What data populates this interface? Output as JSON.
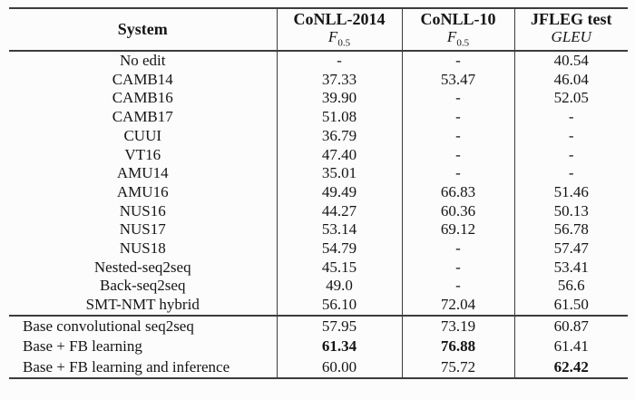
{
  "table": {
    "header": {
      "system": "System",
      "cols": [
        {
          "title": "CoNLL-2014",
          "metric": "F",
          "metric_sub": "0.5"
        },
        {
          "title": "CoNLL-10",
          "metric": "F",
          "metric_sub": "0.5"
        },
        {
          "title": "JFLEG test",
          "metric": "GLEU",
          "metric_sub": ""
        }
      ]
    },
    "rows": [
      {
        "system": "No edit",
        "values": [
          "-",
          "-",
          "40.54"
        ],
        "bold": [
          false,
          false,
          false
        ],
        "group": "published"
      },
      {
        "system": "CAMB14",
        "values": [
          "37.33",
          "53.47",
          "46.04"
        ],
        "bold": [
          false,
          false,
          false
        ],
        "group": "published"
      },
      {
        "system": "CAMB16",
        "values": [
          "39.90",
          "-",
          "52.05"
        ],
        "bold": [
          false,
          false,
          false
        ],
        "group": "published"
      },
      {
        "system": "CAMB17",
        "values": [
          "51.08",
          "-",
          "-"
        ],
        "bold": [
          false,
          false,
          false
        ],
        "group": "published"
      },
      {
        "system": "CUUI",
        "values": [
          "36.79",
          "-",
          "-"
        ],
        "bold": [
          false,
          false,
          false
        ],
        "group": "published"
      },
      {
        "system": "VT16",
        "values": [
          "47.40",
          "-",
          "-"
        ],
        "bold": [
          false,
          false,
          false
        ],
        "group": "published"
      },
      {
        "system": "AMU14",
        "values": [
          "35.01",
          "-",
          "-"
        ],
        "bold": [
          false,
          false,
          false
        ],
        "group": "published"
      },
      {
        "system": "AMU16",
        "values": [
          "49.49",
          "66.83",
          "51.46"
        ],
        "bold": [
          false,
          false,
          false
        ],
        "group": "published"
      },
      {
        "system": "NUS16",
        "values": [
          "44.27",
          "60.36",
          "50.13"
        ],
        "bold": [
          false,
          false,
          false
        ],
        "group": "published"
      },
      {
        "system": "NUS17",
        "values": [
          "53.14",
          "69.12",
          "56.78"
        ],
        "bold": [
          false,
          false,
          false
        ],
        "group": "published"
      },
      {
        "system": "NUS18",
        "values": [
          "54.79",
          "-",
          "57.47"
        ],
        "bold": [
          false,
          false,
          false
        ],
        "group": "published"
      },
      {
        "system": "Nested-seq2seq",
        "values": [
          "45.15",
          "-",
          "53.41"
        ],
        "bold": [
          false,
          false,
          false
        ],
        "group": "published"
      },
      {
        "system": "Back-seq2seq",
        "values": [
          "49.0",
          "-",
          "56.6"
        ],
        "bold": [
          false,
          false,
          false
        ],
        "group": "published"
      },
      {
        "system": "SMT-NMT hybrid",
        "values": [
          "56.10",
          "72.04",
          "61.50"
        ],
        "bold": [
          false,
          false,
          false
        ],
        "group": "published"
      },
      {
        "system": "Base convolutional seq2seq",
        "values": [
          "57.95",
          "73.19",
          "60.87"
        ],
        "bold": [
          false,
          false,
          false
        ],
        "group": "ours"
      },
      {
        "system": "Base + FB learning",
        "values": [
          "61.34",
          "76.88",
          "61.41"
        ],
        "bold": [
          true,
          true,
          false
        ],
        "group": "ours"
      },
      {
        "system": "Base + FB learning and inference",
        "values": [
          "60.00",
          "75.72",
          "62.42"
        ],
        "bold": [
          false,
          false,
          true
        ],
        "group": "ours"
      }
    ]
  }
}
